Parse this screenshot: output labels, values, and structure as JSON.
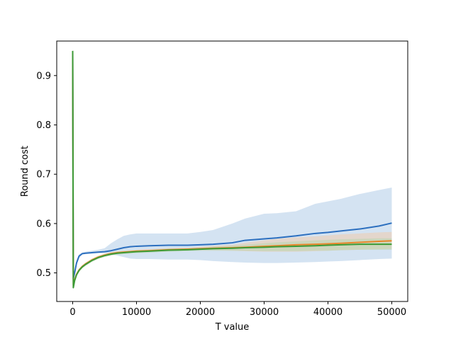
{
  "chart_data": {
    "type": "line",
    "title": "",
    "xlabel": "T value",
    "ylabel": "Round cost",
    "xlim": [
      -2500,
      52500
    ],
    "ylim": [
      0.442,
      0.97
    ],
    "xticks": [
      0,
      10000,
      20000,
      30000,
      40000,
      50000
    ],
    "xtick_labels": [
      "0",
      "10000",
      "20000",
      "30000",
      "40000",
      "50000"
    ],
    "yticks": [
      0.5,
      0.6,
      0.7,
      0.8,
      0.9
    ],
    "ytick_labels": [
      "0.5",
      "0.6",
      "0.7",
      "0.8",
      "0.9"
    ],
    "grid": false,
    "legend": "none",
    "series": [
      {
        "color": "#2c6fbf",
        "band_color": "#a9c7e6",
        "x": [
          0,
          100,
          300,
          600,
          1000,
          1500,
          2000,
          3000,
          4000,
          5000,
          6000,
          7000,
          8000,
          9000,
          10000,
          12000,
          15000,
          18000,
          20000,
          22000,
          25000,
          27000,
          30000,
          32000,
          35000,
          38000,
          40000,
          42000,
          45000,
          48000,
          50000
        ],
        "mean": [
          0.95,
          0.488,
          0.5,
          0.52,
          0.534,
          0.539,
          0.54,
          0.541,
          0.542,
          0.543,
          0.545,
          0.548,
          0.551,
          0.553,
          0.554,
          0.555,
          0.556,
          0.556,
          0.557,
          0.558,
          0.561,
          0.566,
          0.569,
          0.571,
          0.575,
          0.58,
          0.582,
          0.585,
          0.589,
          0.595,
          0.601
        ],
        "upper": [
          0.95,
          0.49,
          0.505,
          0.525,
          0.538,
          0.541,
          0.543,
          0.545,
          0.547,
          0.55,
          0.56,
          0.568,
          0.575,
          0.578,
          0.58,
          0.58,
          0.58,
          0.58,
          0.583,
          0.587,
          0.6,
          0.61,
          0.62,
          0.621,
          0.625,
          0.64,
          0.645,
          0.65,
          0.66,
          0.668,
          0.673
        ],
        "lower": [
          0.95,
          0.485,
          0.495,
          0.515,
          0.53,
          0.537,
          0.538,
          0.539,
          0.54,
          0.54,
          0.538,
          0.535,
          0.532,
          0.529,
          0.528,
          0.528,
          0.527,
          0.527,
          0.526,
          0.524,
          0.522,
          0.521,
          0.52,
          0.52,
          0.521,
          0.522,
          0.523,
          0.524,
          0.526,
          0.528,
          0.529
        ]
      },
      {
        "color": "#e8862a",
        "band_color": "#f2c9a5",
        "x": [
          0,
          100,
          300,
          600,
          1000,
          1500,
          2000,
          3000,
          4000,
          5000,
          6000,
          7000,
          8000,
          9000,
          10000,
          12000,
          15000,
          18000,
          20000,
          22000,
          25000,
          27000,
          30000,
          32000,
          35000,
          38000,
          40000,
          42000,
          45000,
          48000,
          50000
        ],
        "mean": [
          0.95,
          0.475,
          0.486,
          0.497,
          0.506,
          0.513,
          0.518,
          0.526,
          0.532,
          0.536,
          0.539,
          0.541,
          0.542,
          0.543,
          0.544,
          0.545,
          0.547,
          0.548,
          0.549,
          0.55,
          0.551,
          0.552,
          0.554,
          0.555,
          0.557,
          0.558,
          0.559,
          0.56,
          0.562,
          0.564,
          0.565
        ],
        "upper": [
          0.95,
          0.478,
          0.489,
          0.5,
          0.509,
          0.516,
          0.521,
          0.529,
          0.535,
          0.539,
          0.542,
          0.544,
          0.545,
          0.546,
          0.547,
          0.548,
          0.55,
          0.551,
          0.553,
          0.555,
          0.557,
          0.561,
          0.566,
          0.569,
          0.572,
          0.574,
          0.576,
          0.578,
          0.58,
          0.582,
          0.583
        ],
        "lower": [
          0.95,
          0.472,
          0.483,
          0.494,
          0.503,
          0.51,
          0.515,
          0.523,
          0.529,
          0.533,
          0.536,
          0.538,
          0.539,
          0.54,
          0.541,
          0.542,
          0.544,
          0.545,
          0.546,
          0.546,
          0.545,
          0.544,
          0.543,
          0.543,
          0.543,
          0.544,
          0.545,
          0.546,
          0.547,
          0.548,
          0.549
        ]
      },
      {
        "color": "#3c9a36",
        "band_color": "#b5d6ac",
        "x": [
          0,
          100,
          300,
          600,
          1000,
          1500,
          2000,
          3000,
          4000,
          5000,
          6000,
          7000,
          8000,
          9000,
          10000,
          12000,
          15000,
          18000,
          20000,
          22000,
          25000,
          27000,
          30000,
          32000,
          35000,
          38000,
          40000,
          42000,
          45000,
          48000,
          50000
        ],
        "mean": [
          0.95,
          0.47,
          0.484,
          0.496,
          0.505,
          0.512,
          0.517,
          0.525,
          0.531,
          0.535,
          0.538,
          0.54,
          0.541,
          0.542,
          0.543,
          0.544,
          0.546,
          0.547,
          0.548,
          0.549,
          0.55,
          0.551,
          0.552,
          0.553,
          0.554,
          0.555,
          0.556,
          0.557,
          0.558,
          0.558,
          0.558
        ],
        "upper": [
          0.95,
          0.473,
          0.487,
          0.499,
          0.508,
          0.515,
          0.52,
          0.528,
          0.534,
          0.538,
          0.541,
          0.543,
          0.544,
          0.545,
          0.546,
          0.547,
          0.549,
          0.55,
          0.551,
          0.553,
          0.555,
          0.557,
          0.56,
          0.562,
          0.564,
          0.566,
          0.567,
          0.568,
          0.569,
          0.57,
          0.57
        ],
        "lower": [
          0.95,
          0.467,
          0.481,
          0.493,
          0.502,
          0.509,
          0.514,
          0.522,
          0.528,
          0.532,
          0.535,
          0.537,
          0.538,
          0.539,
          0.54,
          0.541,
          0.543,
          0.544,
          0.545,
          0.545,
          0.545,
          0.545,
          0.544,
          0.544,
          0.544,
          0.545,
          0.545,
          0.546,
          0.547,
          0.547,
          0.547
        ]
      }
    ]
  }
}
